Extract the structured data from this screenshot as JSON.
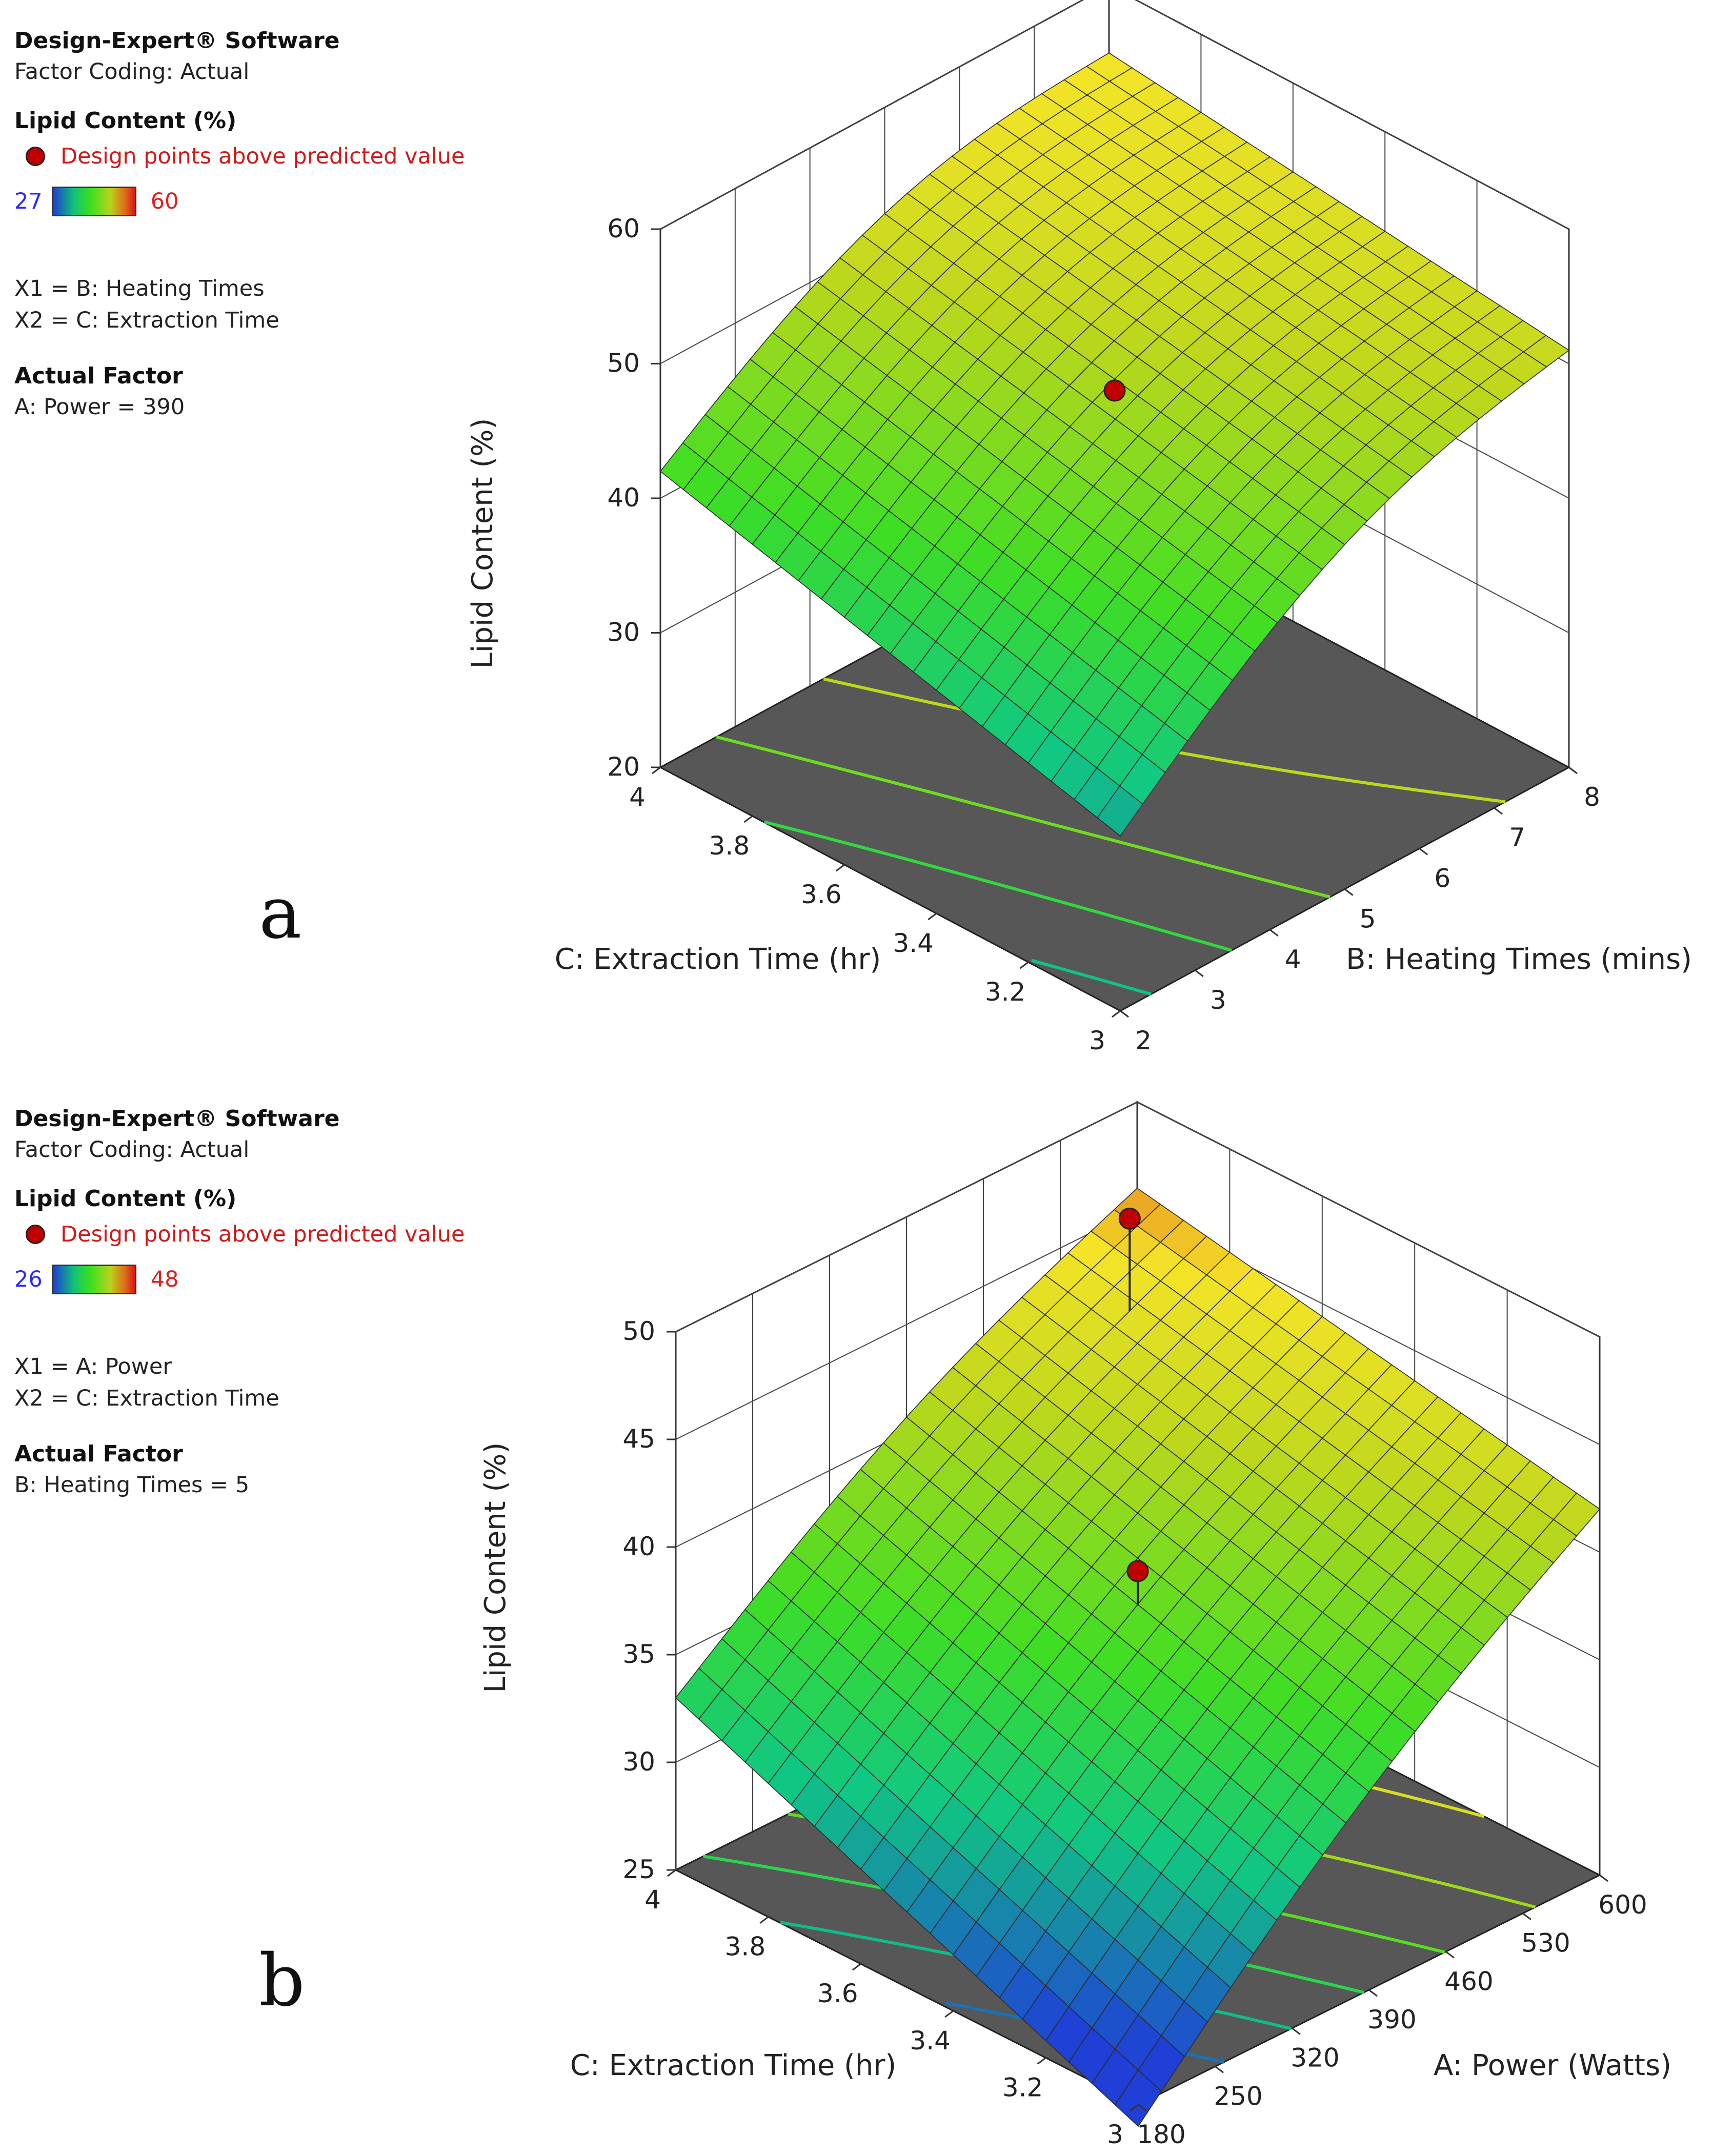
{
  "panels": [
    {
      "software": "Design-Expert® Software",
      "coding": "Factor Coding: Actual",
      "response": "Lipid Content (%)",
      "design_points": "Design points above predicted value",
      "scale_low": "27",
      "scale_high": "60",
      "x1": "X1 = B: Heating Times",
      "x2": "X2 = C: Extraction Time",
      "actual_factor_title": "Actual Factor",
      "actual_factor": "A: Power = 390",
      "label": "a"
    },
    {
      "software": "Design-Expert® Software",
      "coding": "Factor Coding: Actual",
      "response": "Lipid Content (%)",
      "design_points": "Design points above predicted value",
      "scale_low": "26",
      "scale_high": "48",
      "x1": "X1 = A: Power",
      "x2": "X2 = C: Extraction Time",
      "actual_factor_title": "Actual Factor",
      "actual_factor": "B: Heating Times = 5",
      "label": "b"
    }
  ],
  "chart_data": [
    {
      "type": "surface3d",
      "title": "",
      "zlabel": "Lipid Content (%)",
      "xlabel": "B: Heating Times (mins)",
      "ylabel": "C: Extraction Time (hr)",
      "x_ticks": [
        "2",
        "3",
        "4",
        "5",
        "6",
        "7",
        "8"
      ],
      "y_ticks": [
        "3",
        "3.2",
        "3.4",
        "3.6",
        "3.8",
        "4"
      ],
      "z_ticks": [
        "20",
        "30",
        "40",
        "50",
        "60"
      ],
      "x_range": [
        2,
        8
      ],
      "y_range": [
        3,
        4
      ],
      "z_range": [
        20,
        60
      ],
      "corner_values": {
        "x2_y4": 42,
        "x2_y3": 33,
        "x8_y4": 55,
        "x8_y3": 51
      },
      "curvature": 3,
      "design_points": [
        {
          "x": 5,
          "y": 3.5,
          "z": 48
        }
      ],
      "color_scale": {
        "low": 27,
        "high": 60
      },
      "contour_levels": [
        30,
        35,
        40,
        45,
        50
      ],
      "zoom": 1
    },
    {
      "type": "surface3d",
      "title": "",
      "zlabel": "Lipid Content (%)",
      "xlabel": "A: Power (Watts)",
      "ylabel": "C: Extraction Time (hr)",
      "x_ticks": [
        "180",
        "250",
        "320",
        "390",
        "460",
        "530",
        "600"
      ],
      "y_ticks": [
        "3",
        "3.2",
        "3.4",
        "3.6",
        "3.8",
        "4"
      ],
      "z_ticks": [
        "25",
        "30",
        "35",
        "40",
        "45",
        "50"
      ],
      "x_range": [
        180,
        600
      ],
      "y_range": [
        3,
        4
      ],
      "z_range": [
        25,
        50
      ],
      "corner_values": {
        "x180_y4": 33,
        "x180_y3": 24,
        "x600_y4": 46,
        "x600_y3": 42
      },
      "curvature": 1,
      "design_points": [
        {
          "x": 390,
          "y": 3.5,
          "z": 39
        },
        {
          "x": 530,
          "y": 3.85,
          "z": 48
        }
      ],
      "color_scale": {
        "low": 26,
        "high": 48
      },
      "contour_levels": [
        28,
        31,
        34,
        37,
        40,
        43
      ],
      "zoom": 1
    }
  ]
}
